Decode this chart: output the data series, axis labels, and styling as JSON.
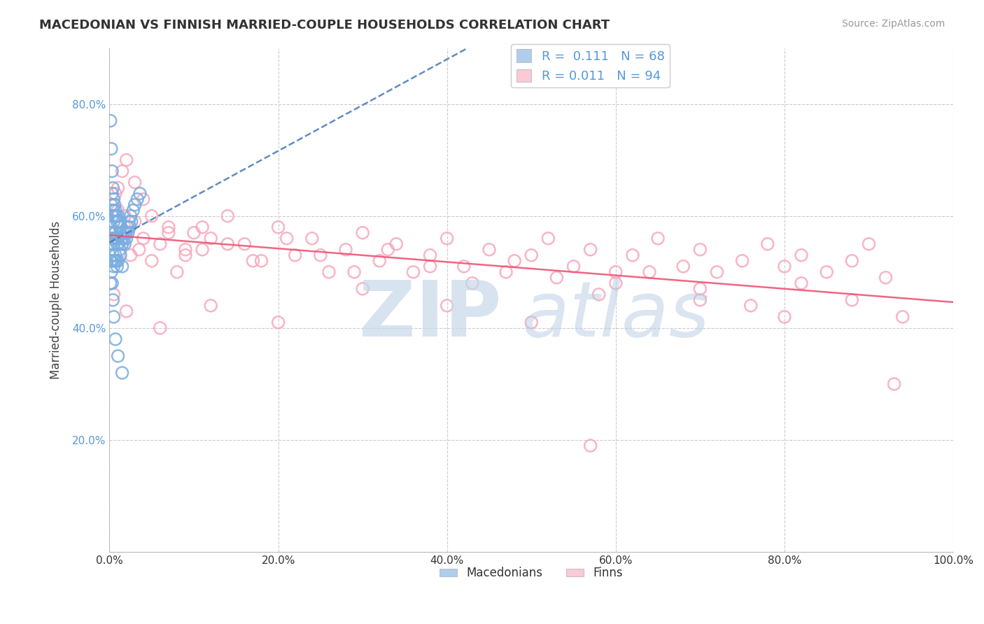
{
  "title": "MACEDONIAN VS FINNISH MARRIED-COUPLE HOUSEHOLDS CORRELATION CHART",
  "source_text": "Source: ZipAtlas.com",
  "ylabel": "Married-couple Households",
  "xlim": [
    0.0,
    1.0
  ],
  "ylim": [
    0.0,
    0.9
  ],
  "x_ticks": [
    0.0,
    0.2,
    0.4,
    0.6,
    0.8,
    1.0
  ],
  "x_tick_labels": [
    "0.0%",
    "20.0%",
    "40.0%",
    "60.0%",
    "80.0%",
    "100.0%"
  ],
  "y_ticks": [
    0.0,
    0.2,
    0.4,
    0.6,
    0.8
  ],
  "y_tick_labels": [
    "",
    "20.0%",
    "40.0%",
    "60.0%",
    "80.0%"
  ],
  "grid_color": "#cccccc",
  "background_color": "#ffffff",
  "macedonian_color": "#7aade0",
  "finnish_color": "#f7a8bb",
  "macedonian_line_color": "#4477bb",
  "finnish_line_color": "#ee5577",
  "r_macedonian": 0.111,
  "n_macedonian": 68,
  "r_finnish": 0.011,
  "n_finnish": 94,
  "macedonian_x": [
    0.001,
    0.001,
    0.001,
    0.002,
    0.002,
    0.002,
    0.002,
    0.003,
    0.003,
    0.003,
    0.003,
    0.003,
    0.004,
    0.004,
    0.004,
    0.004,
    0.005,
    0.005,
    0.005,
    0.005,
    0.006,
    0.006,
    0.006,
    0.006,
    0.007,
    0.007,
    0.007,
    0.008,
    0.008,
    0.008,
    0.009,
    0.009,
    0.009,
    0.01,
    0.01,
    0.01,
    0.011,
    0.011,
    0.012,
    0.012,
    0.013,
    0.013,
    0.014,
    0.015,
    0.015,
    0.016,
    0.017,
    0.018,
    0.019,
    0.02,
    0.021,
    0.022,
    0.023,
    0.024,
    0.025,
    0.026,
    0.028,
    0.03,
    0.033,
    0.036,
    0.001,
    0.002,
    0.003,
    0.004,
    0.005,
    0.007,
    0.01,
    0.015
  ],
  "macedonian_y": [
    0.57,
    0.52,
    0.48,
    0.62,
    0.58,
    0.55,
    0.5,
    0.64,
    0.6,
    0.56,
    0.52,
    0.48,
    0.65,
    0.61,
    0.57,
    0.53,
    0.63,
    0.59,
    0.55,
    0.51,
    0.62,
    0.6,
    0.56,
    0.52,
    0.61,
    0.57,
    0.53,
    0.6,
    0.56,
    0.52,
    0.59,
    0.55,
    0.51,
    0.6,
    0.56,
    0.52,
    0.59,
    0.55,
    0.58,
    0.54,
    0.57,
    0.53,
    0.56,
    0.55,
    0.51,
    0.57,
    0.56,
    0.55,
    0.57,
    0.56,
    0.58,
    0.57,
    0.59,
    0.58,
    0.6,
    0.59,
    0.61,
    0.62,
    0.63,
    0.64,
    0.77,
    0.72,
    0.68,
    0.45,
    0.42,
    0.38,
    0.35,
    0.32
  ],
  "finnish_x": [
    0.003,
    0.005,
    0.007,
    0.01,
    0.013,
    0.015,
    0.018,
    0.02,
    0.025,
    0.03,
    0.035,
    0.04,
    0.05,
    0.06,
    0.07,
    0.08,
    0.09,
    0.1,
    0.11,
    0.12,
    0.14,
    0.16,
    0.18,
    0.2,
    0.22,
    0.24,
    0.26,
    0.28,
    0.3,
    0.32,
    0.34,
    0.36,
    0.38,
    0.4,
    0.42,
    0.45,
    0.47,
    0.5,
    0.52,
    0.55,
    0.57,
    0.6,
    0.62,
    0.65,
    0.68,
    0.7,
    0.72,
    0.75,
    0.78,
    0.8,
    0.82,
    0.85,
    0.88,
    0.9,
    0.01,
    0.015,
    0.02,
    0.03,
    0.04,
    0.05,
    0.07,
    0.09,
    0.11,
    0.14,
    0.17,
    0.21,
    0.25,
    0.29,
    0.33,
    0.38,
    0.43,
    0.48,
    0.53,
    0.58,
    0.64,
    0.7,
    0.76,
    0.82,
    0.88,
    0.94,
    0.005,
    0.02,
    0.06,
    0.12,
    0.2,
    0.3,
    0.4,
    0.5,
    0.6,
    0.7,
    0.8,
    0.92,
    0.57,
    0.93
  ],
  "finnish_y": [
    0.56,
    0.62,
    0.64,
    0.61,
    0.58,
    0.55,
    0.6,
    0.57,
    0.53,
    0.59,
    0.54,
    0.56,
    0.52,
    0.55,
    0.58,
    0.5,
    0.53,
    0.57,
    0.54,
    0.56,
    0.6,
    0.55,
    0.52,
    0.58,
    0.53,
    0.56,
    0.5,
    0.54,
    0.57,
    0.52,
    0.55,
    0.5,
    0.53,
    0.56,
    0.51,
    0.54,
    0.5,
    0.53,
    0.56,
    0.51,
    0.54,
    0.5,
    0.53,
    0.56,
    0.51,
    0.54,
    0.5,
    0.52,
    0.55,
    0.51,
    0.53,
    0.5,
    0.52,
    0.55,
    0.65,
    0.68,
    0.7,
    0.66,
    0.63,
    0.6,
    0.57,
    0.54,
    0.58,
    0.55,
    0.52,
    0.56,
    0.53,
    0.5,
    0.54,
    0.51,
    0.48,
    0.52,
    0.49,
    0.46,
    0.5,
    0.47,
    0.44,
    0.48,
    0.45,
    0.42,
    0.46,
    0.43,
    0.4,
    0.44,
    0.41,
    0.47,
    0.44,
    0.41,
    0.48,
    0.45,
    0.42,
    0.49,
    0.19,
    0.3
  ]
}
